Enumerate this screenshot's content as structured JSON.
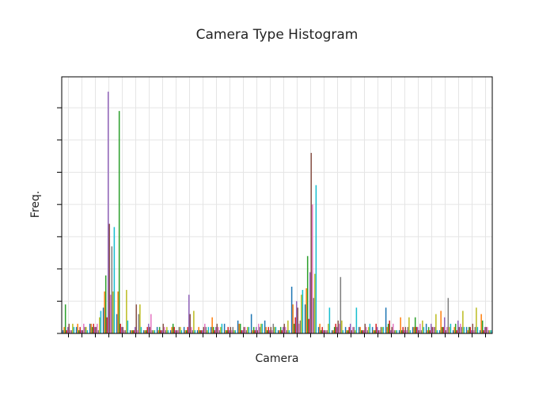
{
  "chart_data": {
    "type": "bar",
    "title": "Camera Type Histogram",
    "x_label": "Camera",
    "y_label": "Freq.",
    "categories": [
      null,
      null,
      null,
      null,
      null,
      null,
      null,
      null,
      null,
      null,
      null,
      null,
      null,
      null,
      null,
      null,
      null,
      null,
      null,
      null,
      null,
      null,
      null,
      null,
      null,
      null,
      null,
      null,
      null,
      null,
      null,
      null
    ],
    "ylim": [
      0,
      7.96
    ],
    "yticks": [
      0,
      1,
      2,
      3,
      4,
      5,
      6,
      7
    ],
    "grid": true,
    "series": [
      {
        "color": "#1f77b4",
        "values": [
          0.1,
          0.2,
          0.3,
          0.8,
          0.6,
          0.1,
          0.1,
          0.2,
          0.1,
          0.2,
          0.1,
          0.2,
          0.3,
          0.4,
          0.6,
          0.4,
          0.1,
          1.45,
          0.9,
          0.2,
          0.1,
          0.2,
          0.2,
          0.2,
          0.8,
          0.1,
          0.2,
          0.3,
          0.1,
          0.1,
          0.2,
          0.1
        ]
      },
      {
        "color": "#ff7f0e",
        "values": [
          0.2,
          0.3,
          0.3,
          1.3,
          1.3,
          0.1,
          0.1,
          0.1,
          0.2,
          0.1,
          0.2,
          0.5,
          0.1,
          0.3,
          0.1,
          0.2,
          0.1,
          0.9,
          1.4,
          0.3,
          0.1,
          0.1,
          0.2,
          0.1,
          0.2,
          0.5,
          0.2,
          0.1,
          0.7,
          0.2,
          0.1,
          0.6
        ]
      },
      {
        "color": "#2ca02c",
        "values": [
          0.9,
          0.1,
          0.2,
          1.8,
          6.9,
          0.1,
          0.1,
          0.2,
          0.3,
          0.1,
          0.1,
          0.2,
          0.1,
          0.3,
          0.2,
          0.1,
          0.2,
          0.3,
          2.4,
          0.1,
          0.2,
          0.1,
          0.1,
          0.1,
          0.3,
          0.1,
          0.5,
          0.2,
          0.2,
          0.3,
          0.2,
          0.4
        ]
      },
      {
        "color": "#d62728",
        "values": [
          0.1,
          0.2,
          0.3,
          0.5,
          0.3,
          0.1,
          0.2,
          0.1,
          0.2,
          0.2,
          0.1,
          0.1,
          0.2,
          0.1,
          0.1,
          0.2,
          0.1,
          0.5,
          0.45,
          0.2,
          0.3,
          0.2,
          0.1,
          0.3,
          0.4,
          0.2,
          0.2,
          0.1,
          0.2,
          0.1,
          0.2,
          0.1
        ]
      },
      {
        "color": "#9467bd",
        "values": [
          0.2,
          0.1,
          0.2,
          7.5,
          0.2,
          0.2,
          0.3,
          0.1,
          0.1,
          1.2,
          0.1,
          0.2,
          0.1,
          0.1,
          0.2,
          0.1,
          0.2,
          1.0,
          1.9,
          0.1,
          0.2,
          0.3,
          0.1,
          0.2,
          0.1,
          0.1,
          0.2,
          0.3,
          0.5,
          0.4,
          0.1,
          0.2
        ]
      },
      {
        "color": "#8c564b",
        "values": [
          0.3,
          0.1,
          0.2,
          3.4,
          0.2,
          0.9,
          0.2,
          0.3,
          0.1,
          0.6,
          0.2,
          0.3,
          0.2,
          0.2,
          0.1,
          0.2,
          0.3,
          0.8,
          5.6,
          0.1,
          0.4,
          0.1,
          0.3,
          0.1,
          0.2,
          0.2,
          0.1,
          0.2,
          0.1,
          0.2,
          0.3,
          0.2
        ]
      },
      {
        "color": "#e377c2",
        "values": [
          0.1,
          0.3,
          0.3,
          1.2,
          0.1,
          0.1,
          0.6,
          0.2,
          0.1,
          0.2,
          0.3,
          0.2,
          0.1,
          0.2,
          0.3,
          0.1,
          0.2,
          0.3,
          4.0,
          0.1,
          0.3,
          0.2,
          0.2,
          0.1,
          0.3,
          0.1,
          0.3,
          0.2,
          0.2,
          0.3,
          0.1,
          0.2
        ]
      },
      {
        "color": "#7f7f7f",
        "values": [
          0.1,
          0.2,
          0.1,
          2.7,
          0.1,
          0.6,
          0.1,
          0.1,
          0.2,
          0.1,
          0.2,
          0.1,
          0.2,
          0.1,
          0.2,
          0.3,
          0.1,
          0.4,
          1.1,
          0.1,
          1.75,
          0.2,
          0.1,
          0.2,
          0.1,
          0.2,
          0.1,
          0.2,
          1.1,
          0.2,
          0.2,
          0.1
        ]
      },
      {
        "color": "#bcbd22",
        "values": [
          0.3,
          0.2,
          0.5,
          1.3,
          1.35,
          0.9,
          0.1,
          0.2,
          0.2,
          0.7,
          0.1,
          0.2,
          0.1,
          0.2,
          0.3,
          0.2,
          0.4,
          1.2,
          1.85,
          0.3,
          0.4,
          0.1,
          0.2,
          0.2,
          0.1,
          0.5,
          0.4,
          0.6,
          0.2,
          0.7,
          0.8,
          0.1
        ]
      },
      {
        "color": "#17becf",
        "values": [
          0.2,
          0.1,
          0.7,
          3.3,
          0.4,
          0.2,
          0.1,
          0.1,
          0.1,
          0.1,
          0.2,
          0.3,
          0.1,
          0.2,
          0.3,
          0.2,
          0.1,
          1.35,
          4.6,
          0.8,
          0.1,
          0.8,
          0.3,
          0.2,
          0.1,
          0.1,
          0.2,
          0.1,
          0.3,
          0.2,
          0.2,
          0.1
        ]
      }
    ]
  }
}
